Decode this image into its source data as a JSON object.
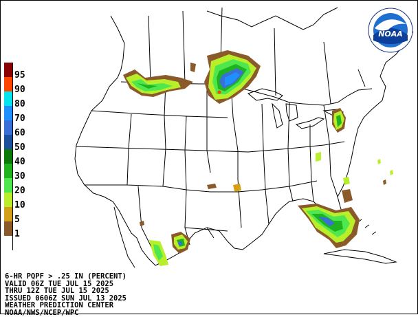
{
  "product": {
    "lines": [
      "6-HR PQPF > .25 IN (PERCENT)",
      "VALID 06Z TUE JUL 15 2025",
      "THRU 12Z TUE JUL 15 2025",
      "ISSUED 0606Z SUN JUL 13 2025",
      "WEATHER PREDICTION CENTER",
      "NOAA/NWS/NCEP/WPC"
    ]
  },
  "legend": [
    {
      "label": "95",
      "color": "#8b0000"
    },
    {
      "label": "90",
      "color": "#ff4500"
    },
    {
      "label": "80",
      "color": "#00e5ee"
    },
    {
      "label": "70",
      "color": "#1e90ff"
    },
    {
      "label": "60",
      "color": "#3a6fd8"
    },
    {
      "label": "50",
      "color": "#1c4f9c"
    },
    {
      "label": "40",
      "color": "#0b7a0b"
    },
    {
      "label": "30",
      "color": "#1fb41f"
    },
    {
      "label": "20",
      "color": "#4ee84e"
    },
    {
      "label": "10",
      "color": "#b8ee2a"
    },
    {
      "label": "5",
      "color": "#d4a017"
    },
    {
      "label": "1",
      "color": "#8b5a2b"
    },
    {
      "label": "",
      "color": "#ffffff"
    }
  ],
  "logo": {
    "text": "NOAA"
  }
}
